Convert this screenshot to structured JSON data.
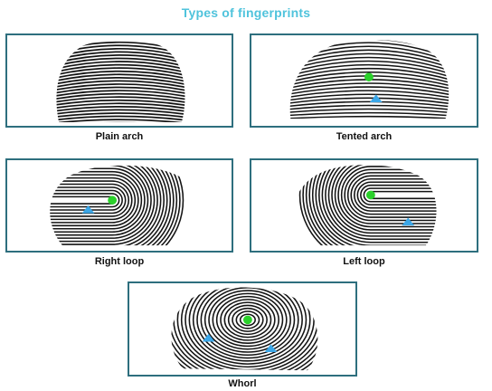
{
  "title": "Types of fingerprints",
  "colors": {
    "title": "#4fc3dc",
    "frame": "#2e6f7e",
    "core_marker": "#2bd12b",
    "delta_marker": "#3ba7e8",
    "ridge": "#141414"
  },
  "markers": {
    "core": "green-dot-core",
    "delta": "blue-triangle-delta"
  },
  "panels": [
    {
      "id": "plain-arch",
      "caption": "Plain arch",
      "pattern": "arch",
      "core": false,
      "deltas": 0
    },
    {
      "id": "tented-arch",
      "caption": "Tented arch",
      "pattern": "tented",
      "core": true,
      "deltas": 1
    },
    {
      "id": "right-loop",
      "caption": "Right loop",
      "pattern": "loop-right",
      "core": true,
      "deltas": 1
    },
    {
      "id": "left-loop",
      "caption": "Left loop",
      "pattern": "loop-left",
      "core": true,
      "deltas": 1
    },
    {
      "id": "whorl",
      "caption": "Whorl",
      "pattern": "whorl",
      "core": true,
      "deltas": 2
    }
  ]
}
